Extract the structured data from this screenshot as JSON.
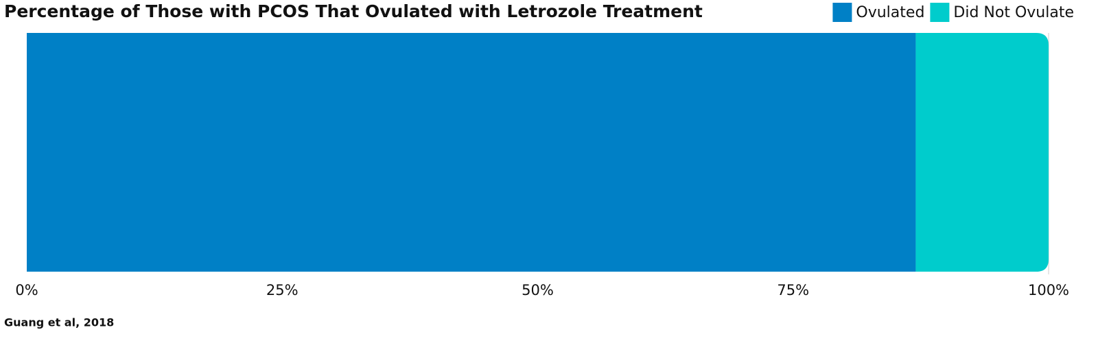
{
  "chart_data": {
    "type": "stacked-bar-horizontal",
    "title": "Percentage of Those with PCOS That Ovulated with Letrozole Treatment",
    "source": "Guang et al, 2018",
    "categories": [
      null
    ],
    "series": [
      {
        "name": "Ovulated",
        "color": "#0080c6",
        "values": [
          87
        ]
      },
      {
        "name": "Did Not Ovulate",
        "color": "#00cccc",
        "values": [
          13
        ]
      }
    ],
    "xlim": [
      0,
      100
    ],
    "xticks": [
      {
        "value": 0,
        "label": "0%"
      },
      {
        "value": 25,
        "label": "25%"
      },
      {
        "value": 50,
        "label": "50%"
      },
      {
        "value": 75,
        "label": "75%"
      },
      {
        "value": 100,
        "label": "100%"
      }
    ],
    "legend": "top-right"
  }
}
